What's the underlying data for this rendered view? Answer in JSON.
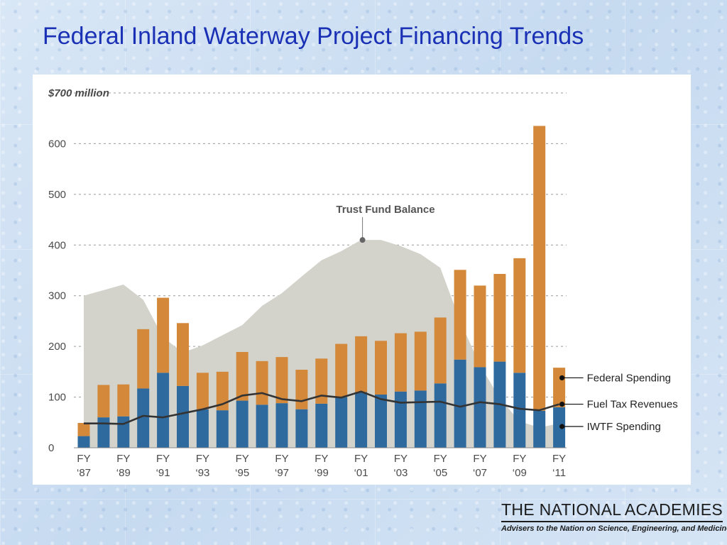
{
  "slide": {
    "title": "Federal Inland Waterway Project Financing Trends"
  },
  "logo": {
    "name": "THE NATIONAL ACADEMIES",
    "tagline": "Advisers to the Nation on Science, Engineering, and Medicine"
  },
  "colors": {
    "title": "#1a31b5",
    "iwtf_bar": "#2f6a9e",
    "federal_bar": "#d3883a",
    "trust_area": "#d3d3cc",
    "fuel_line": "#333333"
  },
  "chart_data": {
    "type": "bar",
    "stacked": true,
    "ylim": [
      0,
      700
    ],
    "yticks": [
      0,
      100,
      200,
      300,
      400,
      500,
      600,
      700
    ],
    "ytick_labels": [
      "0",
      "100",
      "200",
      "300",
      "400",
      "500",
      "600",
      "$700 million"
    ],
    "categories": [
      "1987",
      "1988",
      "1989",
      "1990",
      "1991",
      "1992",
      "1993",
      "1994",
      "1995",
      "1996",
      "1997",
      "1998",
      "1999",
      "2000",
      "2001",
      "2002",
      "2003",
      "2004",
      "2005",
      "2006",
      "2007",
      "2008",
      "2009",
      "2010",
      "2011"
    ],
    "category_labels": [
      [
        "FY",
        "‘87"
      ],
      null,
      [
        "FY",
        "‘89"
      ],
      null,
      [
        "FY",
        "‘91"
      ],
      null,
      [
        "FY",
        "‘93"
      ],
      null,
      [
        "FY",
        "‘95"
      ],
      null,
      [
        "FY",
        "‘97"
      ],
      null,
      [
        "FY",
        "‘99"
      ],
      null,
      [
        "FY",
        "‘01"
      ],
      null,
      [
        "FY",
        "‘03"
      ],
      null,
      [
        "FY",
        "‘05"
      ],
      null,
      [
        "FY",
        "‘07"
      ],
      null,
      [
        "FY",
        "‘09"
      ],
      null,
      [
        "FY",
        "‘11"
      ]
    ],
    "grid": true,
    "series": [
      {
        "name": "IWTF Spending",
        "kind": "bar",
        "values": [
          23,
          60,
          62,
          117,
          148,
          122,
          76,
          74,
          93,
          85,
          88,
          76,
          87,
          100,
          110,
          105,
          111,
          113,
          127,
          174,
          159,
          170,
          148,
          73,
          80
        ]
      },
      {
        "name": "Federal Spending",
        "kind": "bar",
        "values": [
          26,
          64,
          63,
          117,
          148,
          124,
          72,
          76,
          96,
          86,
          91,
          78,
          89,
          105,
          110,
          106,
          115,
          116,
          130,
          177,
          161,
          173,
          226,
          562,
          78
        ]
      },
      {
        "name": "Fuel Tax Revenues",
        "kind": "line",
        "values": [
          48,
          48,
          47,
          63,
          60,
          68,
          76,
          86,
          103,
          108,
          96,
          92,
          103,
          99,
          111,
          96,
          89,
          90,
          91,
          81,
          90,
          86,
          77,
          74,
          86
        ]
      },
      {
        "name": "Trust Fund Balance",
        "kind": "area",
        "values": [
          300,
          311,
          322,
          292,
          218,
          188,
          202,
          222,
          242,
          280,
          305,
          338,
          370,
          388,
          410,
          410,
          398,
          382,
          355,
          250,
          163,
          98,
          52,
          40,
          48
        ]
      }
    ],
    "annotations": {
      "trust_fund_label": "Trust Fund Balance",
      "legend_labels": [
        "Federal Spending",
        "Fuel Tax Revenues",
        "IWTF Spending"
      ],
      "legend_placement": "right"
    }
  }
}
